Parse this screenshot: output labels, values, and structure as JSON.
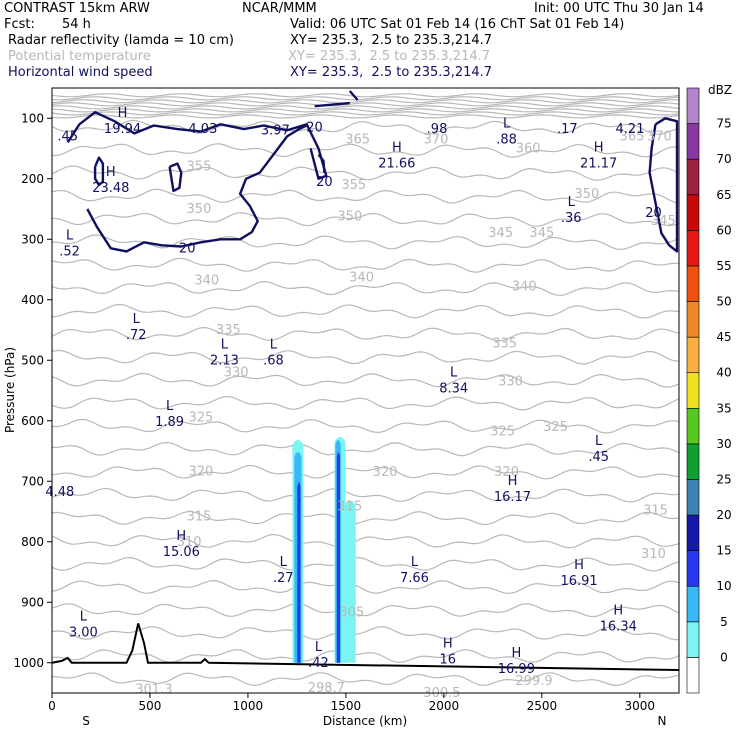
{
  "header": {
    "model": "CONTRAST 15km ARW",
    "org": "NCAR/MMM",
    "init": "Init: 00 UTC Thu 30 Jan 14",
    "fcst_label": "Fcst:",
    "fcst_value": "54 h",
    "valid": "Valid: 06 UTC Sat 01 Feb 14 (16 ChT Sat 01 Feb 14)",
    "fields": [
      {
        "name": "Radar reflectivity (lamda = 10 cm)",
        "xy": "XY= 235.3,  2.5 to 235.3,214.7"
      },
      {
        "name": "Potential temperature",
        "xy": "XY= 235.3,  2.5 to 235.3,214.7"
      },
      {
        "name": "Horizontal wind speed",
        "xy": "XY= 235.3,  2.5 to 235.3,214.7"
      }
    ]
  },
  "colors": {
    "wind": "#101060",
    "theta": "#b8b8b8",
    "terrain": "#000000"
  },
  "chart_data": {
    "type": "cross-section",
    "xlabel": "Distance (km)",
    "ylabel": "Pressure (hPa)",
    "xlim": [
      0,
      3200
    ],
    "ylim": [
      1050,
      50
    ],
    "x_ticks": [
      0,
      500,
      1000,
      1500,
      2000,
      2500,
      3000
    ],
    "y_ticks": [
      100,
      200,
      300,
      400,
      500,
      600,
      700,
      800,
      900,
      1000
    ],
    "left_end": "S",
    "right_end": "N",
    "colorbar": {
      "unit": "dBZ",
      "levels": [
        "0",
        "5",
        "10",
        "15",
        "20",
        "25",
        "30",
        "35",
        "40",
        "45",
        "50",
        "55",
        "60",
        "65",
        "70",
        "75"
      ],
      "colors": [
        "#ffffff",
        "#7cf4f4",
        "#38b8f4",
        "#2838f0",
        "#1818a8",
        "#3c82b4",
        "#10a030",
        "#58c820",
        "#f0e020",
        "#f8b040",
        "#f08828",
        "#f05010",
        "#e81818",
        "#c80808",
        "#9c2040",
        "#8838a0",
        "#b484c8"
      ]
    },
    "theta_labels": [
      {
        "x": 1560,
        "p": 135,
        "t": "365"
      },
      {
        "x": 1960,
        "p": 135,
        "t": "370"
      },
      {
        "x": 2430,
        "p": 150,
        "t": "360"
      },
      {
        "x": 2960,
        "p": 130,
        "t": "365"
      },
      {
        "x": 3100,
        "p": 130,
        "t": "370"
      },
      {
        "x": 750,
        "p": 180,
        "t": "355"
      },
      {
        "x": 1540,
        "p": 210,
        "t": "355"
      },
      {
        "x": 2730,
        "p": 225,
        "t": "350"
      },
      {
        "x": 750,
        "p": 250,
        "t": "350"
      },
      {
        "x": 1520,
        "p": 262,
        "t": "350"
      },
      {
        "x": 2290,
        "p": 290,
        "t": "345"
      },
      {
        "x": 2500,
        "p": 290,
        "t": "345"
      },
      {
        "x": 3120,
        "p": 270,
        "t": "345"
      },
      {
        "x": 790,
        "p": 368,
        "t": "340"
      },
      {
        "x": 1580,
        "p": 363,
        "t": "340"
      },
      {
        "x": 2410,
        "p": 378,
        "t": "340"
      },
      {
        "x": 900,
        "p": 450,
        "t": "335"
      },
      {
        "x": 2310,
        "p": 472,
        "t": "335"
      },
      {
        "x": 940,
        "p": 520,
        "t": "330"
      },
      {
        "x": 2340,
        "p": 535,
        "t": "330"
      },
      {
        "x": 760,
        "p": 595,
        "t": "325"
      },
      {
        "x": 2300,
        "p": 618,
        "t": "325"
      },
      {
        "x": 2570,
        "p": 610,
        "t": "325"
      },
      {
        "x": 760,
        "p": 684,
        "t": "320"
      },
      {
        "x": 1700,
        "p": 685,
        "t": "320"
      },
      {
        "x": 2320,
        "p": 685,
        "t": "320"
      },
      {
        "x": 750,
        "p": 758,
        "t": "315"
      },
      {
        "x": 1520,
        "p": 742,
        "t": "315"
      },
      {
        "x": 3080,
        "p": 748,
        "t": "315"
      },
      {
        "x": 700,
        "p": 800,
        "t": "310"
      },
      {
        "x": 3070,
        "p": 820,
        "t": "310"
      },
      {
        "x": 1530,
        "p": 917,
        "t": "305"
      },
      {
        "x": 520,
        "p": 1044,
        "t": "301.3"
      },
      {
        "x": 1400,
        "p": 1042,
        "t": "298.7"
      },
      {
        "x": 1990,
        "p": 1050,
        "t": "300.5"
      },
      {
        "x": 2460,
        "p": 1030,
        "t": "299.9"
      }
    ],
    "wind_extrema": [
      {
        "x": 360,
        "p": 118,
        "k": "H",
        "v": "19.94"
      },
      {
        "x": 770,
        "p": 118,
        "k": "",
        "v": "4.03"
      },
      {
        "x": 1140,
        "p": 120,
        "k": "",
        "v": "3.97"
      },
      {
        "x": 1965,
        "p": 118,
        "k": "",
        "v": ".98"
      },
      {
        "x": 2320,
        "p": 135,
        "k": "L",
        "v": ".88"
      },
      {
        "x": 2630,
        "p": 118,
        "k": "",
        "v": ".17"
      },
      {
        "x": 2950,
        "p": 118,
        "k": "",
        "v": "4.21"
      },
      {
        "x": 80,
        "p": 130,
        "k": "",
        "v": ".45"
      },
      {
        "x": 300,
        "p": 215,
        "k": "H",
        "v": "23.48"
      },
      {
        "x": 1760,
        "p": 175,
        "k": "H",
        "v": "21.66"
      },
      {
        "x": 2790,
        "p": 175,
        "k": "H",
        "v": "21.17"
      },
      {
        "x": 2650,
        "p": 265,
        "k": "L",
        "v": ".36"
      },
      {
        "x": 90,
        "p": 320,
        "k": "L",
        "v": ".52"
      },
      {
        "x": 430,
        "p": 458,
        "k": "L",
        "v": ".72"
      },
      {
        "x": 880,
        "p": 500,
        "k": "L",
        "v": "2.13"
      },
      {
        "x": 1130,
        "p": 500,
        "k": "L",
        "v": ".68"
      },
      {
        "x": 2050,
        "p": 547,
        "k": "L",
        "v": "8.34"
      },
      {
        "x": 600,
        "p": 602,
        "k": "L",
        "v": "1.89"
      },
      {
        "x": 2790,
        "p": 660,
        "k": "L",
        "v": ".45"
      },
      {
        "x": 40,
        "p": 718,
        "k": "",
        "v": "4.48"
      },
      {
        "x": 2350,
        "p": 726,
        "k": "H",
        "v": "16.17"
      },
      {
        "x": 660,
        "p": 817,
        "k": "H",
        "v": "15.06"
      },
      {
        "x": 1180,
        "p": 860,
        "k": "L",
        "v": ".27"
      },
      {
        "x": 1850,
        "p": 860,
        "k": "L",
        "v": "7.66"
      },
      {
        "x": 2690,
        "p": 865,
        "k": "H",
        "v": "16.91"
      },
      {
        "x": 160,
        "p": 950,
        "k": "L",
        "v": "3.00"
      },
      {
        "x": 2890,
        "p": 940,
        "k": "H",
        "v": "16.34"
      },
      {
        "x": 1360,
        "p": 1000,
        "k": "L",
        "v": ".42"
      },
      {
        "x": 2020,
        "p": 995,
        "k": "H",
        "v": "16"
      },
      {
        "x": 2370,
        "p": 1010,
        "k": "H",
        "v": "16.99"
      }
    ],
    "wind_contour_labels": [
      {
        "x": 1340,
        "p": 115,
        "t": "20"
      },
      {
        "x": 1390,
        "p": 205,
        "t": "20"
      },
      {
        "x": 690,
        "p": 315,
        "t": "20"
      },
      {
        "x": 3070,
        "p": 257,
        "t": "20"
      }
    ],
    "terrain_profile": [
      [
        0,
        1000
      ],
      [
        50,
        997
      ],
      [
        80,
        992
      ],
      [
        100,
        1000
      ],
      [
        380,
        1000
      ],
      [
        410,
        980
      ],
      [
        440,
        935
      ],
      [
        470,
        968
      ],
      [
        490,
        1000
      ],
      [
        760,
        1000
      ],
      [
        780,
        994
      ],
      [
        800,
        1000
      ],
      [
        3200,
        1012
      ]
    ]
  }
}
